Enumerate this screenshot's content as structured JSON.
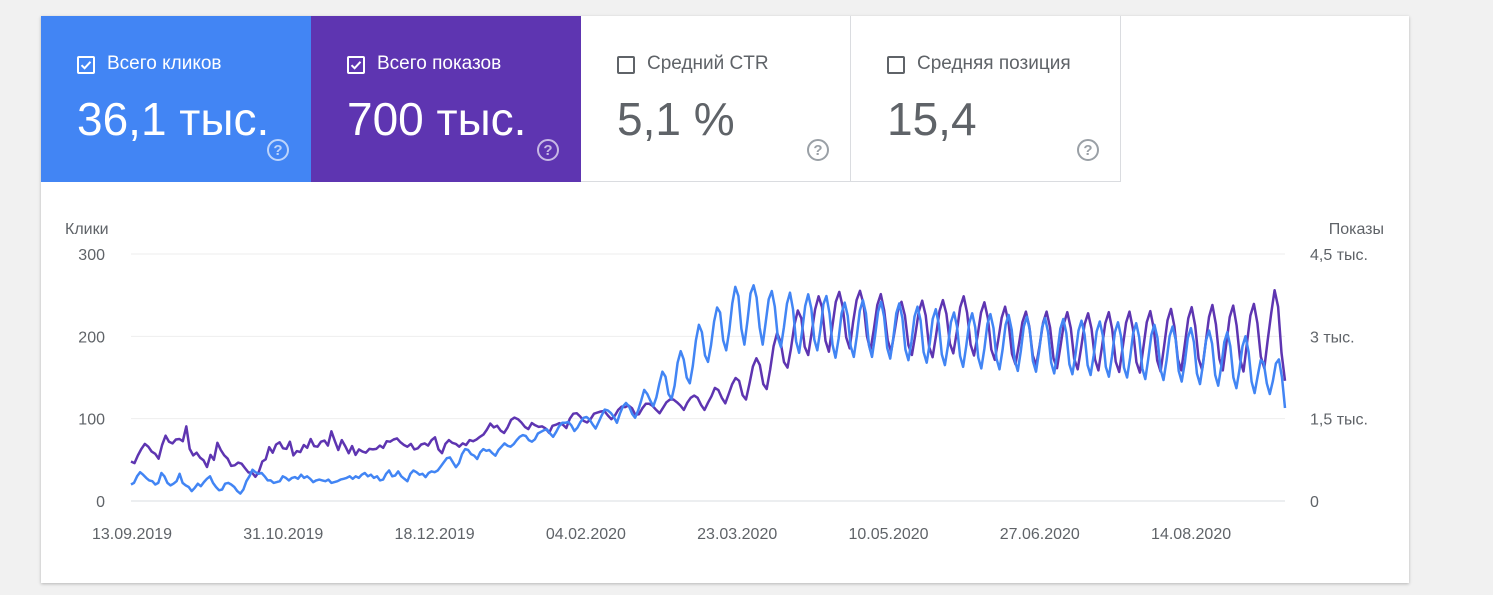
{
  "metrics": [
    {
      "label": "Всего кликов",
      "value": "36,1 тыс.",
      "checked": true,
      "color": "#4285f4"
    },
    {
      "label": "Всего показов",
      "value": "700 тыс.",
      "checked": true,
      "color": "#5e35b1"
    },
    {
      "label": "Средний CTR",
      "value": "5,1 %",
      "checked": false
    },
    {
      "label": "Средняя позиция",
      "value": "15,4",
      "checked": false
    }
  ],
  "help_symbol": "?",
  "chart_data": {
    "type": "line",
    "left_axis": {
      "title": "Клики",
      "ticks": [
        0,
        100,
        200,
        300
      ],
      "tick_labels": [
        "0",
        "100",
        "200",
        "300"
      ],
      "ylim": [
        0,
        300
      ]
    },
    "right_axis": {
      "title": "Показы",
      "ticks": [
        0,
        1500,
        3000,
        4500
      ],
      "tick_labels": [
        "0",
        "1,5 тыс.",
        "3 тыс.",
        "4,5 тыс."
      ],
      "ylim": [
        0,
        4500
      ]
    },
    "x_tick_labels": [
      "13.09.2019",
      "31.10.2019",
      "18.12.2019",
      "04.02.2020",
      "23.03.2020",
      "10.05.2020",
      "27.06.2020",
      "14.08.2020"
    ],
    "x_range": [
      "13.09.2019",
      "06.09.2020"
    ],
    "grid": true,
    "series": [
      {
        "axis": "right",
        "color": "#5e35b1",
        "values": [
          720,
          690,
          830,
          950,
          1040,
          990,
          900,
          860,
          770,
          1020,
          1190,
          1080,
          1050,
          1120,
          1130,
          1090,
          1360,
          950,
          830,
          880,
          790,
          740,
          620,
          840,
          750,
          1060,
          930,
          830,
          770,
          640,
          650,
          700,
          680,
          600,
          520,
          520,
          440,
          530,
          720,
          760,
          980,
          880,
          1030,
          1070,
          960,
          950,
          1080,
          830,
          910,
          890,
          1020,
          970,
          1130,
          1000,
          990,
          1080,
          1100,
          1010,
          1270,
          1090,
          930,
          1110,
          1000,
          870,
          1000,
          840,
          940,
          900,
          880,
          950,
          940,
          950,
          1010,
          970,
          1090,
          1080,
          1120,
          1140,
          1070,
          1020,
          990,
          1040,
          940,
          960,
          1030,
          1050,
          1010,
          1110,
          1160,
          940,
          870,
          1040,
          1110,
          1060,
          1040,
          990,
          1050,
          1020,
          1110,
          1090,
          1120,
          1170,
          1210,
          1300,
          1410,
          1340,
          1370,
          1280,
          1240,
          1340,
          1480,
          1520,
          1490,
          1430,
          1350,
          1310,
          1420,
          1380,
          1350,
          1360,
          1320,
          1240,
          1370,
          1390,
          1420,
          1390,
          1330,
          1500,
          1590,
          1600,
          1540,
          1460,
          1430,
          1490,
          1590,
          1610,
          1630,
          1640,
          1560,
          1490,
          1550,
          1660,
          1720,
          1710,
          1740,
          1690,
          1570,
          1580,
          1690,
          1770,
          1770,
          1730,
          1660,
          1600,
          1700,
          1800,
          1850,
          1850,
          1800,
          1740,
          1660,
          1790,
          1880,
          1920,
          1880,
          1750,
          1660,
          1790,
          1910,
          2060,
          2020,
          1880,
          1780,
          1950,
          2130,
          2240,
          2190,
          1930,
          1850,
          2140,
          2450,
          2600,
          2480,
          2130,
          2040,
          2400,
          2820,
          3060,
          2900,
          2530,
          2430,
          2770,
          3210,
          3470,
          3330,
          2810,
          2660,
          3070,
          3490,
          3730,
          3530,
          2920,
          2720,
          3190,
          3630,
          3810,
          3540,
          2980,
          2780,
          3260,
          3660,
          3830,
          3590,
          3010,
          2740,
          3120,
          3570,
          3770,
          3470,
          2930,
          2720,
          3090,
          3480,
          3630,
          3380,
          2840,
          2660,
          3030,
          3450,
          3650,
          3380,
          2810,
          2620,
          3010,
          3460,
          3660,
          3410,
          2870,
          2690,
          3080,
          3530,
          3730,
          3430,
          2850,
          2650,
          3000,
          3430,
          3620,
          3330,
          2760,
          2570,
          2930,
          3340,
          3540,
          3240,
          2680,
          2490,
          2860,
          3260,
          3450,
          3180,
          2650,
          2470,
          2840,
          3250,
          3450,
          3160,
          2600,
          2420,
          2810,
          3230,
          3440,
          3150,
          2590,
          2400,
          2790,
          3220,
          3420,
          3140,
          2580,
          2380,
          2800,
          3240,
          3440,
          3130,
          2540,
          2350,
          2790,
          3250,
          3450,
          3130,
          2530,
          2340,
          2790,
          3260,
          3460,
          3150,
          2560,
          2360,
          2820,
          3290,
          3500,
          3180,
          2580,
          2380,
          2850,
          3330,
          3530,
          3190,
          2590,
          2390,
          2860,
          3350,
          3570,
          3220,
          2590,
          2380,
          2860,
          3350,
          3560,
          3200,
          2580,
          2360,
          2880,
          3380,
          3590,
          3240,
          2630,
          2420,
          2930,
          3420,
          3840,
          3540,
          2700,
          2190
        ]
      },
      {
        "axis": "left",
        "color": "#4285f4",
        "values": [
          20,
          22,
          30,
          35,
          32,
          28,
          25,
          24,
          20,
          22,
          34,
          30,
          22,
          19,
          21,
          24,
          33,
          22,
          19,
          17,
          12,
          16,
          21,
          18,
          23,
          27,
          30,
          22,
          17,
          13,
          14,
          21,
          22,
          20,
          17,
          12,
          9,
          14,
          24,
          30,
          38,
          35,
          33,
          34,
          30,
          25,
          25,
          22,
          23,
          24,
          30,
          28,
          25,
          28,
          29,
          27,
          32,
          28,
          30,
          27,
          23,
          25,
          26,
          25,
          24,
          26,
          22,
          23,
          24,
          26,
          27,
          28,
          30,
          27,
          30,
          28,
          32,
          34,
          30,
          32,
          28,
          30,
          25,
          26,
          33,
          37,
          30,
          31,
          36,
          30,
          27,
          24,
          33,
          37,
          35,
          32,
          33,
          29,
          34,
          36,
          35,
          37,
          42,
          47,
          52,
          53,
          47,
          41,
          46,
          57,
          63,
          62,
          57,
          55,
          51,
          59,
          63,
          61,
          62,
          58,
          55,
          62,
          66,
          70,
          67,
          66,
          69,
          74,
          78,
          80,
          79,
          74,
          72,
          75,
          82,
          84,
          86,
          87,
          82,
          78,
          84,
          91,
          95,
          95,
          96,
          92,
          85,
          89,
          96,
          101,
          102,
          99,
          93,
          88,
          96,
          104,
          111,
          110,
          107,
          102,
          95,
          106,
          115,
          119,
          115,
          106,
          101,
          110,
          122,
          135,
          130,
          122,
          115,
          126,
          143,
          157,
          151,
          130,
          124,
          140,
          168,
          182,
          172,
          150,
          143,
          164,
          195,
          214,
          205,
          177,
          169,
          189,
          218,
          235,
          229,
          195,
          183,
          207,
          240,
          260,
          249,
          209,
          190,
          219,
          252,
          262,
          247,
          211,
          190,
          217,
          245,
          255,
          236,
          199,
          187,
          211,
          240,
          253,
          233,
          194,
          180,
          206,
          237,
          251,
          234,
          196,
          183,
          208,
          239,
          249,
          228,
          190,
          174,
          197,
          228,
          241,
          225,
          188,
          175,
          200,
          231,
          244,
          228,
          189,
          175,
          200,
          230,
          242,
          224,
          186,
          173,
          197,
          228,
          240,
          222,
          184,
          171,
          194,
          224,
          236,
          219,
          181,
          168,
          191,
          221,
          233,
          215,
          178,
          165,
          188,
          217,
          229,
          212,
          176,
          163,
          187,
          216,
          228,
          211,
          174,
          161,
          185,
          215,
          227,
          210,
          173,
          160,
          184,
          214,
          226,
          208,
          171,
          158,
          182,
          212,
          224,
          207,
          170,
          157,
          181,
          211,
          222,
          205,
          168,
          155,
          179,
          209,
          221,
          204,
          166,
          154,
          178,
          207,
          219,
          202,
          165,
          153,
          177,
          206,
          218,
          201,
          163,
          151,
          175,
          205,
          217,
          200,
          162,
          150,
          174,
          204,
          216,
          199,
          161,
          148,
          173,
          202,
          214,
          198,
          160,
          147,
          171,
          200,
          212,
          196,
          158,
          145,
          168,
          198,
          210,
          193,
          155,
          142,
          166,
          195,
          207,
          191,
          153,
          140,
          163,
          193,
          205,
          188,
          150,
          137,
          159,
          188,
          200,
          181,
          145,
          131,
          152,
          171,
          168,
          143,
          130,
          146,
          167,
          172,
          150,
          113
        ]
      }
    ]
  }
}
